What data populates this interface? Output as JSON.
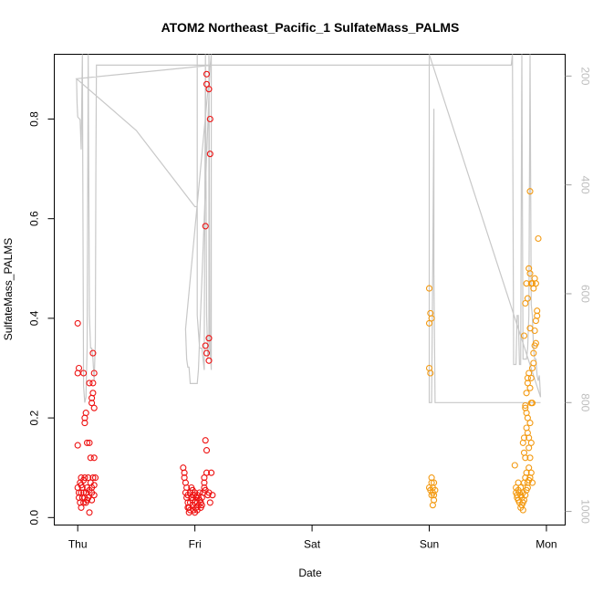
{
  "chart_data": {
    "type": "scatter",
    "title": "ATOM2 Northeast_Pacific_1 SulfateMass_PALMS",
    "xlabel": "Date",
    "ylabel": "SulfateMass_PALMS",
    "x_ticks": [
      "Thu",
      "Fri",
      "Sat",
      "Sun",
      "Mon"
    ],
    "xlim_days": [
      -0.2,
      4.16
    ],
    "ylim": [
      -0.015,
      0.93
    ],
    "y_ticks": [
      "0.0",
      "0.2",
      "0.4",
      "0.6",
      "0.8"
    ],
    "y_tick_values": [
      0,
      0.2,
      0.4,
      0.6,
      0.8
    ],
    "y2_ticks": [
      "200",
      "400",
      "600",
      "800",
      "1000"
    ],
    "y2_tick_values": [
      200,
      400,
      600,
      800,
      1000
    ],
    "y2lim": [
      1025,
      160
    ],
    "colors": {
      "red": "#ee1111",
      "orange": "#f39a12",
      "altitude": "#c8c8c8"
    },
    "series": [
      {
        "color": "#ee1111",
        "points": [
          [
            0.0,
            0.39
          ],
          [
            0.01,
            0.3
          ],
          [
            0.0,
            0.29
          ],
          [
            0.03,
            0.05
          ],
          [
            0.05,
            0.29
          ],
          [
            0.06,
            0.2
          ],
          [
            0.06,
            0.19
          ],
          [
            0.07,
            0.21
          ],
          [
            0.08,
            0.15
          ],
          [
            0.1,
            0.27
          ],
          [
            0.11,
            0.12
          ],
          [
            0.12,
            0.23
          ],
          [
            0.12,
            0.24
          ],
          [
            0.13,
            0.25
          ],
          [
            0.13,
            0.27
          ],
          [
            0.14,
            0.29
          ],
          [
            0.13,
            0.33
          ],
          [
            0.14,
            0.12
          ],
          [
            0.14,
            0.22
          ],
          [
            0.1,
            0.15
          ],
          [
            0.0,
            0.145
          ],
          [
            0.0,
            0.06
          ],
          [
            0.01,
            0.05
          ],
          [
            0.01,
            0.04
          ],
          [
            0.02,
            0.03
          ],
          [
            0.02,
            0.07
          ],
          [
            0.03,
            0.08
          ],
          [
            0.03,
            0.02
          ],
          [
            0.04,
            0.06
          ],
          [
            0.04,
            0.04
          ],
          [
            0.05,
            0.03
          ],
          [
            0.05,
            0.05
          ],
          [
            0.06,
            0.08
          ],
          [
            0.06,
            0.04
          ],
          [
            0.07,
            0.05
          ],
          [
            0.07,
            0.03
          ],
          [
            0.08,
            0.06
          ],
          [
            0.09,
            0.04
          ],
          [
            0.09,
            0.08
          ],
          [
            0.1,
            0.055
          ],
          [
            0.1,
            0.01
          ],
          [
            0.11,
            0.07
          ],
          [
            0.12,
            0.06
          ],
          [
            0.12,
            0.035
          ],
          [
            0.13,
            0.08
          ],
          [
            0.14,
            0.065
          ],
          [
            0.14,
            0.045
          ],
          [
            0.15,
            0.08
          ],
          [
            0.03,
            0.065
          ],
          [
            0.08,
            0.035
          ],
          [
            0.12,
            0.05
          ],
          [
            0.05,
            0.075
          ],
          [
            0.9,
            0.1
          ],
          [
            0.91,
            0.09
          ],
          [
            0.91,
            0.08
          ],
          [
            0.92,
            0.07
          ],
          [
            0.92,
            0.05
          ],
          [
            0.93,
            0.06
          ],
          [
            0.93,
            0.04
          ],
          [
            0.94,
            0.03
          ],
          [
            0.94,
            0.02
          ],
          [
            0.95,
            0.01
          ],
          [
            0.95,
            0.02
          ],
          [
            0.96,
            0.03
          ],
          [
            0.96,
            0.05
          ],
          [
            0.97,
            0.04
          ],
          [
            0.97,
            0.06
          ],
          [
            0.98,
            0.035
          ],
          [
            0.98,
            0.025
          ],
          [
            0.99,
            0.015
          ],
          [
            0.99,
            0.045
          ],
          [
            1.0,
            0.03
          ],
          [
            1.0,
            0.05
          ],
          [
            1.01,
            0.02
          ],
          [
            1.01,
            0.04
          ],
          [
            1.02,
            0.03
          ],
          [
            1.02,
            0.015
          ],
          [
            1.03,
            0.04
          ],
          [
            1.03,
            0.025
          ],
          [
            1.04,
            0.035
          ],
          [
            1.04,
            0.05
          ],
          [
            1.05,
            0.02
          ],
          [
            0.94,
            0.045
          ],
          [
            0.96,
            0.015
          ],
          [
            0.98,
            0.055
          ],
          [
            1.0,
            0.01
          ],
          [
            1.02,
            0.045
          ],
          [
            1.05,
            0.03
          ],
          [
            1.06,
            0.04
          ],
          [
            1.07,
            0.05
          ],
          [
            1.08,
            0.08
          ],
          [
            1.08,
            0.06
          ],
          [
            1.09,
            0.055
          ],
          [
            1.1,
            0.09
          ],
          [
            1.11,
            0.045
          ],
          [
            1.12,
            0.05
          ],
          [
            1.13,
            0.03
          ],
          [
            1.14,
            0.09
          ],
          [
            1.15,
            0.045
          ],
          [
            1.09,
            0.155
          ],
          [
            1.1,
            0.135
          ],
          [
            1.08,
            0.07
          ],
          [
            1.06,
            0.025
          ],
          [
            1.09,
            0.585
          ],
          [
            1.1,
            0.87
          ],
          [
            1.1,
            0.89
          ],
          [
            1.12,
            0.86
          ],
          [
            1.13,
            0.8
          ],
          [
            1.13,
            0.73
          ],
          [
            1.12,
            0.36
          ],
          [
            1.12,
            0.315
          ],
          [
            1.1,
            0.33
          ],
          [
            1.09,
            0.345
          ]
        ]
      },
      {
        "color": "#f39a12",
        "points": [
          [
            3.0,
            0.46
          ],
          [
            3.01,
            0.41
          ],
          [
            3.0,
            0.39
          ],
          [
            3.02,
            0.4
          ],
          [
            3.0,
            0.3
          ],
          [
            3.01,
            0.29
          ],
          [
            3.0,
            0.06
          ],
          [
            3.01,
            0.055
          ],
          [
            3.02,
            0.07
          ],
          [
            3.02,
            0.08
          ],
          [
            3.03,
            0.06
          ],
          [
            3.03,
            0.05
          ],
          [
            3.04,
            0.045
          ],
          [
            3.04,
            0.07
          ],
          [
            3.05,
            0.055
          ],
          [
            3.03,
            0.025
          ],
          [
            3.04,
            0.035
          ],
          [
            3.02,
            0.045
          ],
          [
            3.73,
            0.105
          ],
          [
            3.74,
            0.06
          ],
          [
            3.74,
            0.05
          ],
          [
            3.75,
            0.045
          ],
          [
            3.75,
            0.04
          ],
          [
            3.76,
            0.07
          ],
          [
            3.76,
            0.035
          ],
          [
            3.77,
            0.05
          ],
          [
            3.77,
            0.03
          ],
          [
            3.78,
            0.02
          ],
          [
            3.78,
            0.06
          ],
          [
            3.79,
            0.025
          ],
          [
            3.79,
            0.04
          ],
          [
            3.8,
            0.015
          ],
          [
            3.8,
            0.05
          ],
          [
            3.81,
            0.07
          ],
          [
            3.81,
            0.035
          ],
          [
            3.82,
            0.08
          ],
          [
            3.82,
            0.045
          ],
          [
            3.83,
            0.055
          ],
          [
            3.83,
            0.09
          ],
          [
            3.84,
            0.06
          ],
          [
            3.84,
            0.07
          ],
          [
            3.85,
            0.075
          ],
          [
            3.85,
            0.1
          ],
          [
            3.86,
            0.08
          ],
          [
            3.87,
            0.09
          ],
          [
            3.88,
            0.07
          ],
          [
            3.76,
            0.055
          ],
          [
            3.78,
            0.045
          ],
          [
            3.8,
            0.03
          ],
          [
            3.8,
            0.15
          ],
          [
            3.81,
            0.16
          ],
          [
            3.81,
            0.13
          ],
          [
            3.82,
            0.12
          ],
          [
            3.82,
            0.22
          ],
          [
            3.83,
            0.21
          ],
          [
            3.83,
            0.18
          ],
          [
            3.84,
            0.17
          ],
          [
            3.84,
            0.2
          ],
          [
            3.85,
            0.16
          ],
          [
            3.85,
            0.14
          ],
          [
            3.86,
            0.19
          ],
          [
            3.86,
            0.12
          ],
          [
            3.87,
            0.15
          ],
          [
            3.87,
            0.23
          ],
          [
            3.88,
            0.23
          ],
          [
            3.82,
            0.225
          ],
          [
            3.83,
            0.25
          ],
          [
            3.84,
            0.27
          ],
          [
            3.84,
            0.28
          ],
          [
            3.85,
            0.29
          ],
          [
            3.86,
            0.26
          ],
          [
            3.87,
            0.28
          ],
          [
            3.88,
            0.3
          ],
          [
            3.89,
            0.31
          ],
          [
            3.89,
            0.33
          ],
          [
            3.9,
            0.345
          ],
          [
            3.91,
            0.35
          ],
          [
            3.92,
            0.405
          ],
          [
            3.92,
            0.415
          ],
          [
            3.91,
            0.395
          ],
          [
            3.9,
            0.375
          ],
          [
            3.81,
            0.365
          ],
          [
            3.82,
            0.43
          ],
          [
            3.83,
            0.47
          ],
          [
            3.84,
            0.44
          ],
          [
            3.85,
            0.5
          ],
          [
            3.86,
            0.49
          ],
          [
            3.87,
            0.47
          ],
          [
            3.88,
            0.47
          ],
          [
            3.89,
            0.46
          ],
          [
            3.9,
            0.48
          ],
          [
            3.91,
            0.47
          ],
          [
            3.93,
            0.56
          ],
          [
            3.86,
            0.655
          ],
          [
            3.86,
            0.38
          ]
        ]
      }
    ],
    "altitude_path": [
      [
        -0.01,
        205
      ],
      [
        -0.005,
        250
      ],
      [
        0.0,
        275
      ],
      [
        0.02,
        280
      ],
      [
        0.03,
        335
      ],
      [
        0.04,
        160
      ],
      [
        0.05,
        770
      ],
      [
        0.06,
        800
      ],
      [
        0.07,
        790
      ],
      [
        0.08,
        700
      ],
      [
        0.09,
        160
      ],
      [
        0.1,
        640
      ],
      [
        0.11,
        700
      ],
      [
        0.12,
        700
      ],
      [
        0.13,
        720
      ],
      [
        0.14,
        760
      ],
      [
        0.15,
        690
      ],
      [
        0.155,
        370
      ],
      [
        0.16,
        180
      ],
      [
        0.17,
        180
      ],
      [
        0.3,
        180
      ],
      [
        0.4,
        180
      ],
      [
        0.5,
        180
      ],
      [
        0.6,
        180
      ],
      [
        0.7,
        180
      ],
      [
        0.8,
        180
      ],
      [
        0.9,
        180
      ],
      [
        1.0,
        180
      ],
      [
        1.1,
        180
      ],
      [
        1.15,
        180
      ],
      [
        -0.01,
        205
      ],
      [
        0.5,
        300
      ],
      [
        1.0,
        440
      ],
      [
        1.02,
        440
      ],
      [
        1.02,
        160
      ],
      [
        1.02,
        640
      ],
      [
        1.04,
        700
      ],
      [
        1.06,
        700
      ],
      [
        1.08,
        740
      ],
      [
        1.08,
        690
      ],
      [
        1.09,
        160
      ],
      [
        1.1,
        640
      ],
      [
        1.11,
        720
      ],
      [
        1.12,
        700
      ],
      [
        1.12,
        160
      ],
      [
        1.13,
        700
      ],
      [
        1.14,
        740
      ],
      [
        1.14,
        160
      ],
      [
        0.92,
        665
      ],
      [
        0.93,
        720
      ],
      [
        0.94,
        735
      ],
      [
        0.95,
        735
      ],
      [
        0.96,
        765
      ],
      [
        1.02,
        765
      ],
      [
        1.03,
        740
      ],
      [
        1.13,
        180
      ],
      [
        2.0,
        180
      ],
      [
        3.0,
        180
      ],
      [
        3.7,
        180
      ],
      [
        3.71,
        160
      ],
      [
        3.72,
        730
      ],
      [
        3.74,
        730
      ],
      [
        3.75,
        640
      ],
      [
        3.76,
        640
      ],
      [
        3.77,
        730
      ],
      [
        3.78,
        730
      ],
      [
        3.79,
        160
      ],
      [
        3.8,
        720
      ],
      [
        3.83,
        720
      ],
      [
        3.84,
        700
      ],
      [
        3.85,
        640
      ],
      [
        3.86,
        160
      ],
      [
        3.87,
        620
      ],
      [
        3.88,
        640
      ],
      [
        3.89,
        700
      ],
      [
        3.9,
        720
      ],
      [
        3.91,
        720
      ],
      [
        3.92,
        750
      ],
      [
        3.93,
        760
      ],
      [
        3.94,
        750
      ],
      [
        3.95,
        790
      ],
      [
        3.0,
        160
      ],
      [
        3.0,
        800
      ],
      [
        3.02,
        800
      ],
      [
        3.03,
        540
      ],
      [
        3.04,
        260
      ],
      [
        3.04,
        560
      ],
      [
        3.05,
        800
      ],
      [
        3.5,
        800
      ],
      [
        3.95,
        800
      ]
    ]
  }
}
